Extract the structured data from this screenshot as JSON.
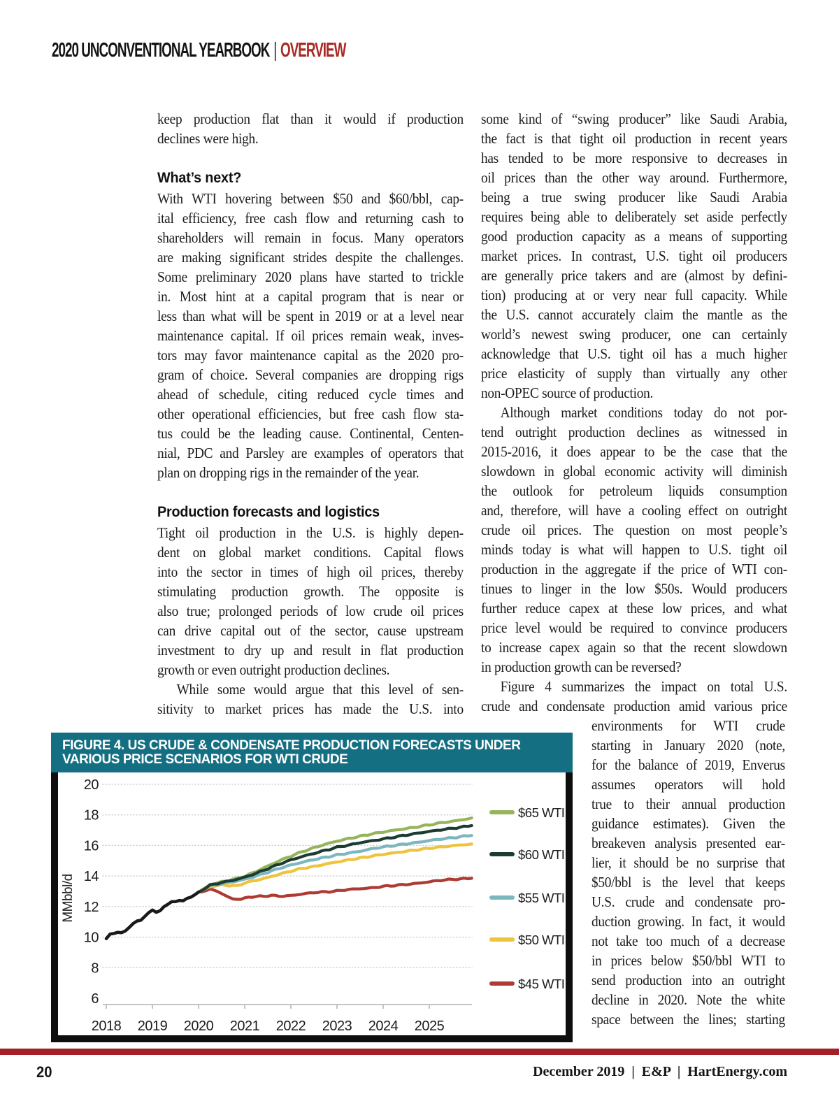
{
  "header": {
    "title": "2020 UNCONVENTIONAL YEARBOOK",
    "separator": "|",
    "section": "OVERVIEW",
    "section_color": "#a82a24"
  },
  "footer": {
    "page_number": "20",
    "right_text": "December 2019  |  E&P  |  HartEnergy.com",
    "rule_color": "#a32026"
  },
  "columns": {
    "col1": {
      "blocks": [
        {
          "kind": "para",
          "end": true,
          "lines": [
            "keep production flat than it would if production",
            "declines were high."
          ]
        },
        {
          "kind": "heading",
          "text": "What’s next?"
        },
        {
          "kind": "para",
          "end": true,
          "lines": [
            "With WTI hovering between $50 and $60/bbl, cap-",
            "ital efficiency, free cash flow and returning cash to",
            "shareholders will remain in focus. Many operators",
            "are making significant strides despite the challenges.",
            "Some preliminary 2020 plans have started to trickle",
            "in. Most hint at a capital program that is near or",
            "less than what will be spent in 2019 or at a level near",
            "maintenance capital. If oil prices remain weak, inves-",
            "tors may favor maintenance capital as the 2020 pro-",
            "gram of choice. Several companies are dropping rigs",
            "ahead of schedule, citing reduced cycle times and",
            "other operational efficiencies, but free cash flow sta-",
            "tus could be the leading cause. Continental, Centen-",
            "nial, PDC and Parsley are examples of operators that",
            "plan on dropping rigs in the remainder of the year."
          ]
        },
        {
          "kind": "heading",
          "text": "Production forecasts and logistics"
        },
        {
          "kind": "para",
          "end": true,
          "lines": [
            "Tight oil production in the U.S. is highly depen-",
            "dent on global market conditions. Capital flows",
            "into the sector in times of high oil prices, thereby",
            "stimulating production growth. The opposite is",
            "also true; prolonged periods of low crude oil prices",
            "can drive capital out of the sector, cause upstream",
            "investment to dry up and result in flat production",
            "growth or even outright production declines."
          ]
        },
        {
          "kind": "para",
          "indent": true,
          "end": false,
          "lines": [
            "While some would argue that this level of sen-",
            "sitivity to market prices has made the U.S. into"
          ]
        }
      ]
    },
    "col2": {
      "blocks": [
        {
          "kind": "para",
          "end": true,
          "lines": [
            "some kind of “swing producer” like Saudi Arabia,",
            "the fact is that tight oil production in recent years",
            "has tended to be more responsive to decreases in",
            "oil prices than the other way around. Furthermore,",
            "being a true swing producer like Saudi Arabia",
            "requires being able to deliberately set aside perfectly",
            "good production capacity as a means of supporting",
            "market prices. In contrast, U.S. tight oil producers",
            "are generally price takers and are (almost by defini-",
            "tion) producing at or very near full capacity. While",
            "the U.S. cannot accurately claim the mantle as the",
            "world’s newest swing producer, one can certainly",
            "acknowledge that U.S. tight oil has a much higher",
            "price elasticity of supply than virtually any other",
            "non-OPEC source of production."
          ]
        },
        {
          "kind": "para",
          "indent": true,
          "end": true,
          "lines": [
            "Although market conditions today do not por-",
            "tend outright production declines as witnessed in",
            "2015-2016, it does appear to be the case that the",
            "slowdown in global economic activity will diminish",
            "the outlook for petroleum liquids consumption",
            "and, therefore, will have a cooling effect on outright",
            "crude oil prices. The question on most people’s",
            "minds today is what will happen to U.S. tight oil",
            "production in the aggregate if the price of WTI con-",
            "tinues to linger in the low $50s. Would producers",
            "further reduce capex at these low prices, and what",
            "price level would be required to convince producers",
            "to increase capex again so that the recent slowdown",
            "in production growth can be reversed?"
          ]
        },
        {
          "kind": "para",
          "indent": true,
          "end": false,
          "lines": [
            "Figure 4 summarizes the impact on total U.S.",
            "crude and condensate production amid various price"
          ]
        }
      ]
    },
    "col3": {
      "blocks": [
        {
          "kind": "para",
          "end": false,
          "lines": [
            "environments for WTI crude",
            "starting in January 2020 (note,",
            "for the balance of 2019, Enverus",
            "assumes operators will hold",
            "true to their annual production",
            "guidance estimates). Given the",
            "breakeven analysis presented ear-",
            "lier, it should be no surprise that",
            "$50/bbl is the level that keeps",
            "U.S. crude and condensate pro-",
            "duction growing. In fact, it would",
            "not take too much of a decrease",
            "in prices below $50/bbl WTI to",
            "send production into an outright",
            "decline in 2020. Note the white",
            "space between the lines; starting"
          ]
        }
      ]
    }
  },
  "figure": {
    "title_lines": [
      "FIGURE 4. US CRUDE & CONDENSATE PRODUCTION FORECASTS UNDER",
      "VARIOUS PRICE SCENARIOS FOR WTI CRUDE"
    ],
    "header_bg": "#146f83",
    "border_color": "#0e0e0e"
  },
  "chart_data": {
    "type": "line",
    "ylabel": "MMbbl/d",
    "ylim": [
      6,
      20
    ],
    "yticks": [
      6,
      8,
      10,
      12,
      14,
      16,
      18,
      20
    ],
    "xticks": [
      2018,
      2019,
      2020,
      2021,
      2022,
      2023,
      2024,
      2025
    ],
    "grid": "dotted-horizontal",
    "legend_position": "right",
    "legend": [
      "$65 WTI",
      "$60 WTI",
      "$55 WTI",
      "$50 WTI",
      "$45 WTI"
    ],
    "series": [
      {
        "name": "Historical",
        "color": "#1a1a1a",
        "width": 4.5,
        "points": [
          [
            2018.0,
            9.9
          ],
          [
            2018.083,
            10.18
          ],
          [
            2018.167,
            10.25
          ],
          [
            2018.25,
            10.33
          ],
          [
            2018.333,
            10.28
          ],
          [
            2018.417,
            10.4
          ],
          [
            2018.5,
            10.65
          ],
          [
            2018.583,
            10.9
          ],
          [
            2018.667,
            11.05
          ],
          [
            2018.75,
            11.1
          ],
          [
            2018.833,
            11.35
          ],
          [
            2018.917,
            11.6
          ],
          [
            2019.0,
            11.78
          ],
          [
            2019.083,
            11.62
          ],
          [
            2019.167,
            11.72
          ],
          [
            2019.25,
            12.0
          ],
          [
            2019.333,
            12.15
          ],
          [
            2019.417,
            12.3
          ],
          [
            2019.5,
            12.32
          ],
          [
            2019.583,
            12.42
          ],
          [
            2019.667,
            12.38
          ],
          [
            2019.75,
            12.52
          ],
          [
            2019.833,
            12.62
          ],
          [
            2019.917,
            12.78
          ],
          [
            2020.0,
            12.95
          ]
        ]
      },
      {
        "name": "$45 WTI",
        "color": "#ae3a34",
        "width": 4.2,
        "points": [
          [
            2020.0,
            12.95
          ],
          [
            2020.25,
            13.12
          ],
          [
            2020.42,
            13.0
          ],
          [
            2020.58,
            12.7
          ],
          [
            2020.75,
            12.5
          ],
          [
            2020.92,
            12.48
          ],
          [
            2021.08,
            12.62
          ],
          [
            2021.33,
            12.67
          ],
          [
            2021.58,
            12.72
          ],
          [
            2021.83,
            12.68
          ],
          [
            2022.0,
            12.72
          ],
          [
            2022.25,
            12.82
          ],
          [
            2022.5,
            12.92
          ],
          [
            2022.75,
            12.96
          ],
          [
            2023.0,
            13.02
          ],
          [
            2023.25,
            13.12
          ],
          [
            2023.5,
            13.17
          ],
          [
            2023.75,
            13.22
          ],
          [
            2024.0,
            13.32
          ],
          [
            2024.25,
            13.38
          ],
          [
            2024.5,
            13.45
          ],
          [
            2024.75,
            13.52
          ],
          [
            2025.0,
            13.62
          ],
          [
            2025.25,
            13.72
          ],
          [
            2025.5,
            13.78
          ],
          [
            2025.75,
            13.82
          ],
          [
            2025.92,
            13.85
          ]
        ]
      },
      {
        "name": "$50 WTI",
        "color": "#eec33d",
        "width": 4.2,
        "points": [
          [
            2020.0,
            12.95
          ],
          [
            2020.25,
            13.3
          ],
          [
            2020.5,
            13.42
          ],
          [
            2020.67,
            13.38
          ],
          [
            2020.83,
            13.35
          ],
          [
            2021.0,
            13.55
          ],
          [
            2021.25,
            13.72
          ],
          [
            2021.5,
            13.9
          ],
          [
            2021.75,
            14.12
          ],
          [
            2022.0,
            14.32
          ],
          [
            2022.25,
            14.5
          ],
          [
            2022.5,
            14.62
          ],
          [
            2022.75,
            14.78
          ],
          [
            2023.0,
            14.92
          ],
          [
            2023.25,
            15.05
          ],
          [
            2023.5,
            15.18
          ],
          [
            2023.75,
            15.3
          ],
          [
            2024.0,
            15.42
          ],
          [
            2024.25,
            15.52
          ],
          [
            2024.5,
            15.62
          ],
          [
            2024.75,
            15.72
          ],
          [
            2025.0,
            15.82
          ],
          [
            2025.25,
            15.9
          ],
          [
            2025.5,
            15.98
          ],
          [
            2025.75,
            16.05
          ],
          [
            2025.92,
            16.1
          ]
        ]
      },
      {
        "name": "$55 WTI",
        "color": "#7cb7bf",
        "width": 4.2,
        "points": [
          [
            2020.0,
            12.95
          ],
          [
            2020.25,
            13.35
          ],
          [
            2020.5,
            13.5
          ],
          [
            2020.75,
            13.62
          ],
          [
            2021.0,
            13.78
          ],
          [
            2021.25,
            14.0
          ],
          [
            2021.5,
            14.25
          ],
          [
            2021.75,
            14.5
          ],
          [
            2022.0,
            14.72
          ],
          [
            2022.25,
            14.9
          ],
          [
            2022.5,
            15.08
          ],
          [
            2022.75,
            15.22
          ],
          [
            2023.0,
            15.38
          ],
          [
            2023.25,
            15.5
          ],
          [
            2023.5,
            15.62
          ],
          [
            2023.75,
            15.78
          ],
          [
            2024.0,
            15.9
          ],
          [
            2024.25,
            16.0
          ],
          [
            2024.5,
            16.1
          ],
          [
            2024.75,
            16.2
          ],
          [
            2025.0,
            16.32
          ],
          [
            2025.25,
            16.42
          ],
          [
            2025.5,
            16.5
          ],
          [
            2025.75,
            16.6
          ],
          [
            2025.92,
            16.65
          ]
        ]
      },
      {
        "name": "$60 WTI",
        "color": "#1c3c33",
        "width": 4.2,
        "points": [
          [
            2020.0,
            12.95
          ],
          [
            2020.25,
            13.4
          ],
          [
            2020.5,
            13.58
          ],
          [
            2020.75,
            13.72
          ],
          [
            2021.0,
            13.92
          ],
          [
            2021.25,
            14.18
          ],
          [
            2021.5,
            14.48
          ],
          [
            2021.75,
            14.78
          ],
          [
            2022.0,
            15.05
          ],
          [
            2022.25,
            15.28
          ],
          [
            2022.5,
            15.48
          ],
          [
            2022.75,
            15.68
          ],
          [
            2023.0,
            15.88
          ],
          [
            2023.25,
            16.02
          ],
          [
            2023.5,
            16.18
          ],
          [
            2023.75,
            16.3
          ],
          [
            2024.0,
            16.42
          ],
          [
            2024.25,
            16.55
          ],
          [
            2024.5,
            16.68
          ],
          [
            2024.75,
            16.8
          ],
          [
            2025.0,
            16.92
          ],
          [
            2025.25,
            17.02
          ],
          [
            2025.5,
            17.12
          ],
          [
            2025.75,
            17.22
          ],
          [
            2025.92,
            17.3
          ]
        ]
      },
      {
        "name": "$65 WTI",
        "color": "#96b45c",
        "width": 4.2,
        "points": [
          [
            2020.0,
            12.95
          ],
          [
            2020.25,
            13.42
          ],
          [
            2020.5,
            13.62
          ],
          [
            2020.75,
            13.78
          ],
          [
            2021.0,
            13.98
          ],
          [
            2021.25,
            14.3
          ],
          [
            2021.5,
            14.65
          ],
          [
            2021.75,
            15.0
          ],
          [
            2022.0,
            15.3
          ],
          [
            2022.25,
            15.6
          ],
          [
            2022.5,
            15.85
          ],
          [
            2022.75,
            16.08
          ],
          [
            2023.0,
            16.28
          ],
          [
            2023.25,
            16.45
          ],
          [
            2023.5,
            16.6
          ],
          [
            2023.75,
            16.75
          ],
          [
            2024.0,
            16.88
          ],
          [
            2024.25,
            17.0
          ],
          [
            2024.5,
            17.1
          ],
          [
            2024.75,
            17.22
          ],
          [
            2025.0,
            17.35
          ],
          [
            2025.25,
            17.48
          ],
          [
            2025.5,
            17.58
          ],
          [
            2025.75,
            17.7
          ],
          [
            2025.92,
            17.8
          ]
        ]
      }
    ]
  }
}
